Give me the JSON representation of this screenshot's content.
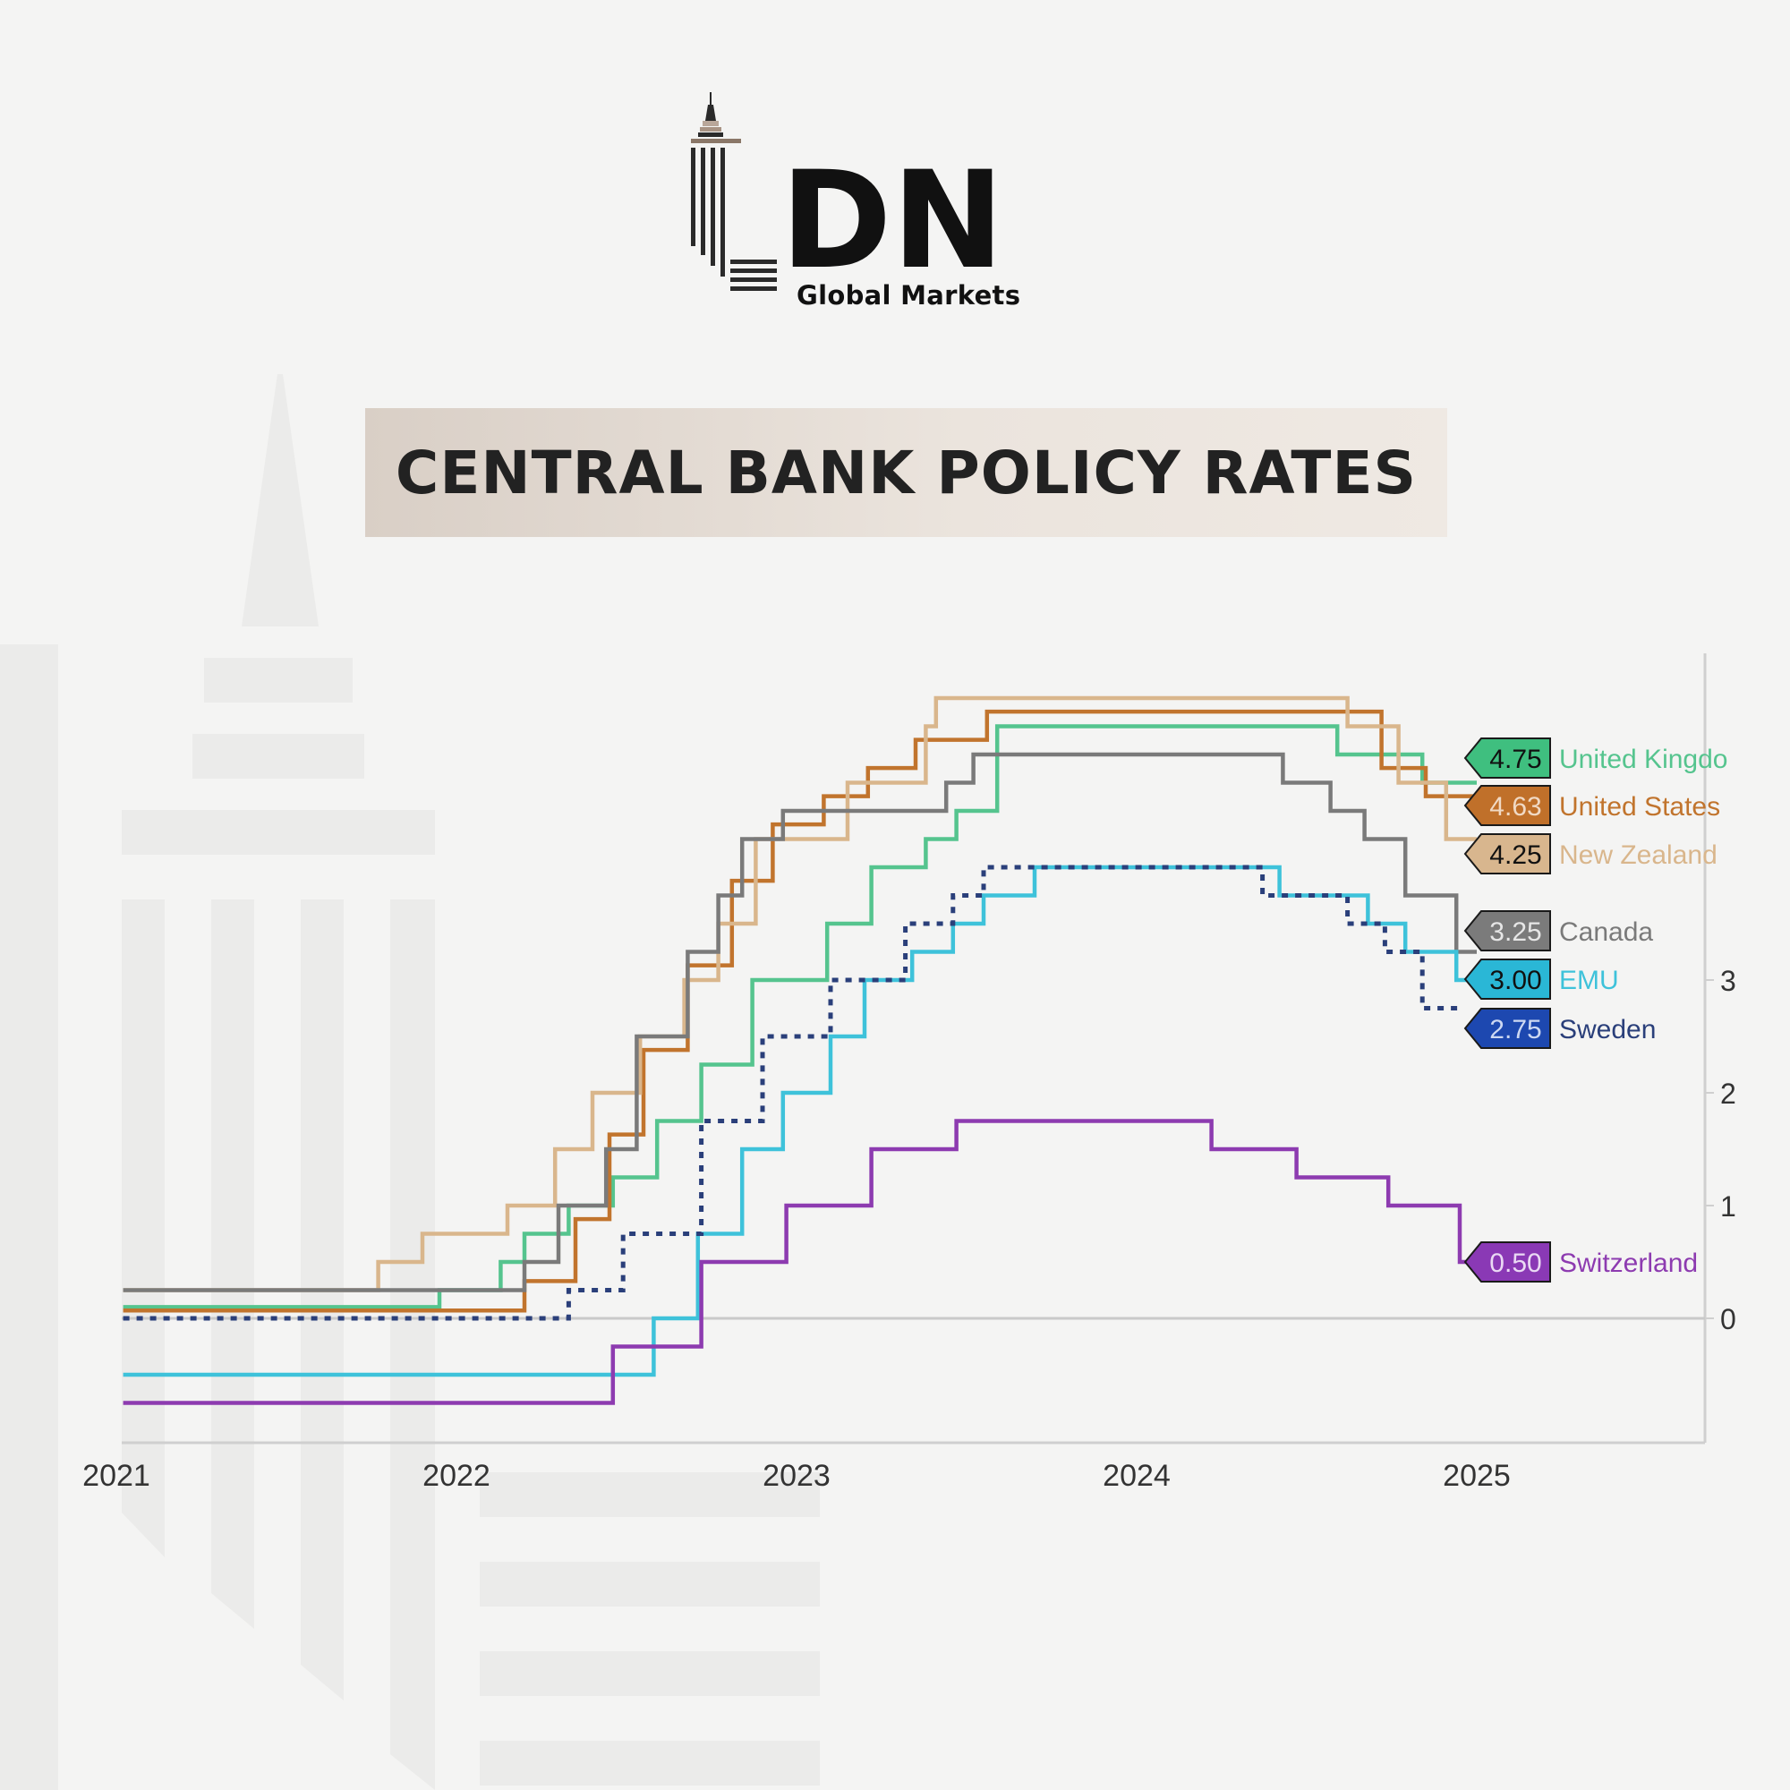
{
  "brand": {
    "logo_mark": "LDN",
    "logo_letters": "DN",
    "tagline": "Global Markets"
  },
  "chart_data": {
    "type": "line",
    "title": "CENTRAL BANK POLICY RATES",
    "xlabel": "",
    "ylabel": "",
    "x_ticks": [
      "2021",
      "2022",
      "2023",
      "2024",
      "2025"
    ],
    "y_ticks": [
      "0",
      "1",
      "2",
      "3"
    ],
    "ylim": [
      -1,
      5.9
    ],
    "xlim": [
      2021.02,
      2025.68
    ],
    "grid": false,
    "step": true,
    "series": [
      {
        "name": "United Kingdo",
        "label_value": "4.75",
        "color": "#55c48e",
        "label_bg": "#3fbf7f",
        "label_fg": "#111111",
        "points": [
          [
            2021.02,
            0.1
          ],
          [
            2021.95,
            0.1
          ],
          [
            2021.95,
            0.25
          ],
          [
            2022.13,
            0.25
          ],
          [
            2022.13,
            0.5
          ],
          [
            2022.2,
            0.5
          ],
          [
            2022.2,
            0.75
          ],
          [
            2022.33,
            0.75
          ],
          [
            2022.33,
            1.0
          ],
          [
            2022.46,
            1.0
          ],
          [
            2022.46,
            1.25
          ],
          [
            2022.59,
            1.25
          ],
          [
            2022.59,
            1.75
          ],
          [
            2022.72,
            1.75
          ],
          [
            2022.72,
            2.25
          ],
          [
            2022.87,
            2.25
          ],
          [
            2022.87,
            3.0
          ],
          [
            2023.09,
            3.0
          ],
          [
            2023.09,
            3.5
          ],
          [
            2023.22,
            3.5
          ],
          [
            2023.22,
            4.0
          ],
          [
            2023.38,
            4.0
          ],
          [
            2023.38,
            4.25
          ],
          [
            2023.47,
            4.25
          ],
          [
            2023.47,
            4.5
          ],
          [
            2023.59,
            4.5
          ],
          [
            2023.59,
            5.25
          ],
          [
            2024.59,
            5.25
          ],
          [
            2024.59,
            5.0
          ],
          [
            2024.84,
            5.0
          ],
          [
            2024.84,
            4.75
          ],
          [
            2025.0,
            4.75
          ]
        ]
      },
      {
        "name": "United States",
        "label_value": "4.63",
        "color": "#c1742d",
        "label_bg": "#c0702a",
        "label_fg": "#f0d9c4",
        "points": [
          [
            2021.02,
            0.07
          ],
          [
            2022.2,
            0.07
          ],
          [
            2022.2,
            0.33
          ],
          [
            2022.35,
            0.33
          ],
          [
            2022.35,
            0.88
          ],
          [
            2022.45,
            0.88
          ],
          [
            2022.45,
            1.63
          ],
          [
            2022.55,
            1.63
          ],
          [
            2022.55,
            2.38
          ],
          [
            2022.68,
            2.38
          ],
          [
            2022.68,
            3.13
          ],
          [
            2022.81,
            3.13
          ],
          [
            2022.81,
            3.88
          ],
          [
            2022.93,
            3.88
          ],
          [
            2022.93,
            4.38
          ],
          [
            2023.08,
            4.38
          ],
          [
            2023.08,
            4.63
          ],
          [
            2023.21,
            4.63
          ],
          [
            2023.21,
            4.88
          ],
          [
            2023.35,
            4.88
          ],
          [
            2023.35,
            5.13
          ],
          [
            2023.56,
            5.13
          ],
          [
            2023.56,
            5.38
          ],
          [
            2024.72,
            5.38
          ],
          [
            2024.72,
            4.88
          ],
          [
            2024.85,
            4.88
          ],
          [
            2024.85,
            4.63
          ],
          [
            2025.0,
            4.63
          ]
        ]
      },
      {
        "name": "New Zealand",
        "label_value": "4.25",
        "color": "#d9b68c",
        "label_bg": "#d8b68e",
        "label_fg": "#111111",
        "points": [
          [
            2021.02,
            0.25
          ],
          [
            2021.77,
            0.25
          ],
          [
            2021.77,
            0.5
          ],
          [
            2021.9,
            0.5
          ],
          [
            2021.9,
            0.75
          ],
          [
            2022.15,
            0.75
          ],
          [
            2022.15,
            1.0
          ],
          [
            2022.29,
            1.0
          ],
          [
            2022.29,
            1.5
          ],
          [
            2022.4,
            1.5
          ],
          [
            2022.4,
            2.0
          ],
          [
            2022.54,
            2.0
          ],
          [
            2022.54,
            2.5
          ],
          [
            2022.67,
            2.5
          ],
          [
            2022.67,
            3.0
          ],
          [
            2022.77,
            3.0
          ],
          [
            2022.77,
            3.5
          ],
          [
            2022.88,
            3.5
          ],
          [
            2022.88,
            4.25
          ],
          [
            2023.15,
            4.25
          ],
          [
            2023.15,
            4.75
          ],
          [
            2023.38,
            4.75
          ],
          [
            2023.38,
            5.25
          ],
          [
            2023.41,
            5.25
          ],
          [
            2023.41,
            5.5
          ],
          [
            2024.62,
            5.5
          ],
          [
            2024.62,
            5.25
          ],
          [
            2024.77,
            5.25
          ],
          [
            2024.77,
            4.75
          ],
          [
            2024.91,
            4.75
          ],
          [
            2024.91,
            4.25
          ],
          [
            2025.0,
            4.25
          ]
        ]
      },
      {
        "name": "Canada",
        "label_value": "3.25",
        "color": "#7a7a7a",
        "label_bg": "#7b7b7b",
        "label_fg": "#e6e6e6",
        "points": [
          [
            2021.02,
            0.25
          ],
          [
            2022.2,
            0.25
          ],
          [
            2022.2,
            0.5
          ],
          [
            2022.3,
            0.5
          ],
          [
            2022.3,
            1.0
          ],
          [
            2022.44,
            1.0
          ],
          [
            2022.44,
            1.5
          ],
          [
            2022.53,
            1.5
          ],
          [
            2022.53,
            2.5
          ],
          [
            2022.68,
            2.5
          ],
          [
            2022.68,
            3.25
          ],
          [
            2022.77,
            3.25
          ],
          [
            2022.77,
            3.75
          ],
          [
            2022.84,
            3.75
          ],
          [
            2022.84,
            4.25
          ],
          [
            2022.96,
            4.25
          ],
          [
            2022.96,
            4.5
          ],
          [
            2023.44,
            4.5
          ],
          [
            2023.44,
            4.75
          ],
          [
            2023.52,
            4.75
          ],
          [
            2023.52,
            5.0
          ],
          [
            2024.43,
            5.0
          ],
          [
            2024.43,
            4.75
          ],
          [
            2024.57,
            4.75
          ],
          [
            2024.57,
            4.5
          ],
          [
            2024.67,
            4.5
          ],
          [
            2024.67,
            4.25
          ],
          [
            2024.79,
            4.25
          ],
          [
            2024.79,
            3.75
          ],
          [
            2024.94,
            3.75
          ],
          [
            2024.94,
            3.25
          ],
          [
            2025.0,
            3.25
          ]
        ]
      },
      {
        "name": "EMU",
        "label_value": "3.00",
        "color": "#3ec2da",
        "label_bg": "#2ab7d6",
        "label_fg": "#111111",
        "points": [
          [
            2021.02,
            -0.5
          ],
          [
            2022.58,
            -0.5
          ],
          [
            2022.58,
            0.0
          ],
          [
            2022.71,
            0.0
          ],
          [
            2022.71,
            0.75
          ],
          [
            2022.84,
            0.75
          ],
          [
            2022.84,
            1.5
          ],
          [
            2022.96,
            1.5
          ],
          [
            2022.96,
            2.0
          ],
          [
            2023.1,
            2.0
          ],
          [
            2023.1,
            2.5
          ],
          [
            2023.2,
            2.5
          ],
          [
            2023.2,
            3.0
          ],
          [
            2023.34,
            3.0
          ],
          [
            2023.34,
            3.25
          ],
          [
            2023.46,
            3.25
          ],
          [
            2023.46,
            3.5
          ],
          [
            2023.55,
            3.5
          ],
          [
            2023.55,
            3.75
          ],
          [
            2023.7,
            3.75
          ],
          [
            2023.7,
            4.0
          ],
          [
            2024.42,
            4.0
          ],
          [
            2024.42,
            3.75
          ],
          [
            2024.68,
            3.75
          ],
          [
            2024.68,
            3.5
          ],
          [
            2024.79,
            3.5
          ],
          [
            2024.79,
            3.25
          ],
          [
            2024.94,
            3.25
          ],
          [
            2024.94,
            3.0
          ],
          [
            2025.0,
            3.0
          ]
        ]
      },
      {
        "name": "Sweden",
        "label_value": "2.75",
        "color": "#2a3f7a",
        "label_bg": "#1d48b0",
        "label_fg": "#cdd8f2",
        "dashed": true,
        "points": [
          [
            2021.02,
            0.0
          ],
          [
            2022.33,
            0.0
          ],
          [
            2022.33,
            0.25
          ],
          [
            2022.49,
            0.25
          ],
          [
            2022.49,
            0.75
          ],
          [
            2022.72,
            0.75
          ],
          [
            2022.72,
            1.75
          ],
          [
            2022.9,
            1.75
          ],
          [
            2022.9,
            2.5
          ],
          [
            2023.1,
            2.5
          ],
          [
            2023.1,
            3.0
          ],
          [
            2023.32,
            3.0
          ],
          [
            2023.32,
            3.5
          ],
          [
            2023.46,
            3.5
          ],
          [
            2023.46,
            3.75
          ],
          [
            2023.55,
            3.75
          ],
          [
            2023.55,
            4.0
          ],
          [
            2024.37,
            4.0
          ],
          [
            2024.37,
            3.75
          ],
          [
            2024.62,
            3.75
          ],
          [
            2024.62,
            3.5
          ],
          [
            2024.73,
            3.5
          ],
          [
            2024.73,
            3.25
          ],
          [
            2024.84,
            3.25
          ],
          [
            2024.84,
            2.75
          ],
          [
            2024.95,
            2.75
          ]
        ]
      },
      {
        "name": "Switzerland",
        "label_value": "0.50",
        "color": "#8d3bb0",
        "label_bg": "#8a39b5",
        "label_fg": "#ead9f4",
        "points": [
          [
            2021.02,
            -0.75
          ],
          [
            2022.46,
            -0.75
          ],
          [
            2022.46,
            -0.25
          ],
          [
            2022.72,
            -0.25
          ],
          [
            2022.72,
            0.5
          ],
          [
            2022.97,
            0.5
          ],
          [
            2022.97,
            1.0
          ],
          [
            2023.22,
            1.0
          ],
          [
            2023.22,
            1.5
          ],
          [
            2023.47,
            1.5
          ],
          [
            2023.47,
            1.75
          ],
          [
            2024.22,
            1.75
          ],
          [
            2024.22,
            1.5
          ],
          [
            2024.47,
            1.5
          ],
          [
            2024.47,
            1.25
          ],
          [
            2024.74,
            1.25
          ],
          [
            2024.74,
            1.0
          ],
          [
            2024.95,
            1.0
          ],
          [
            2024.95,
            0.5
          ],
          [
            2025.0,
            0.5
          ]
        ]
      }
    ]
  }
}
